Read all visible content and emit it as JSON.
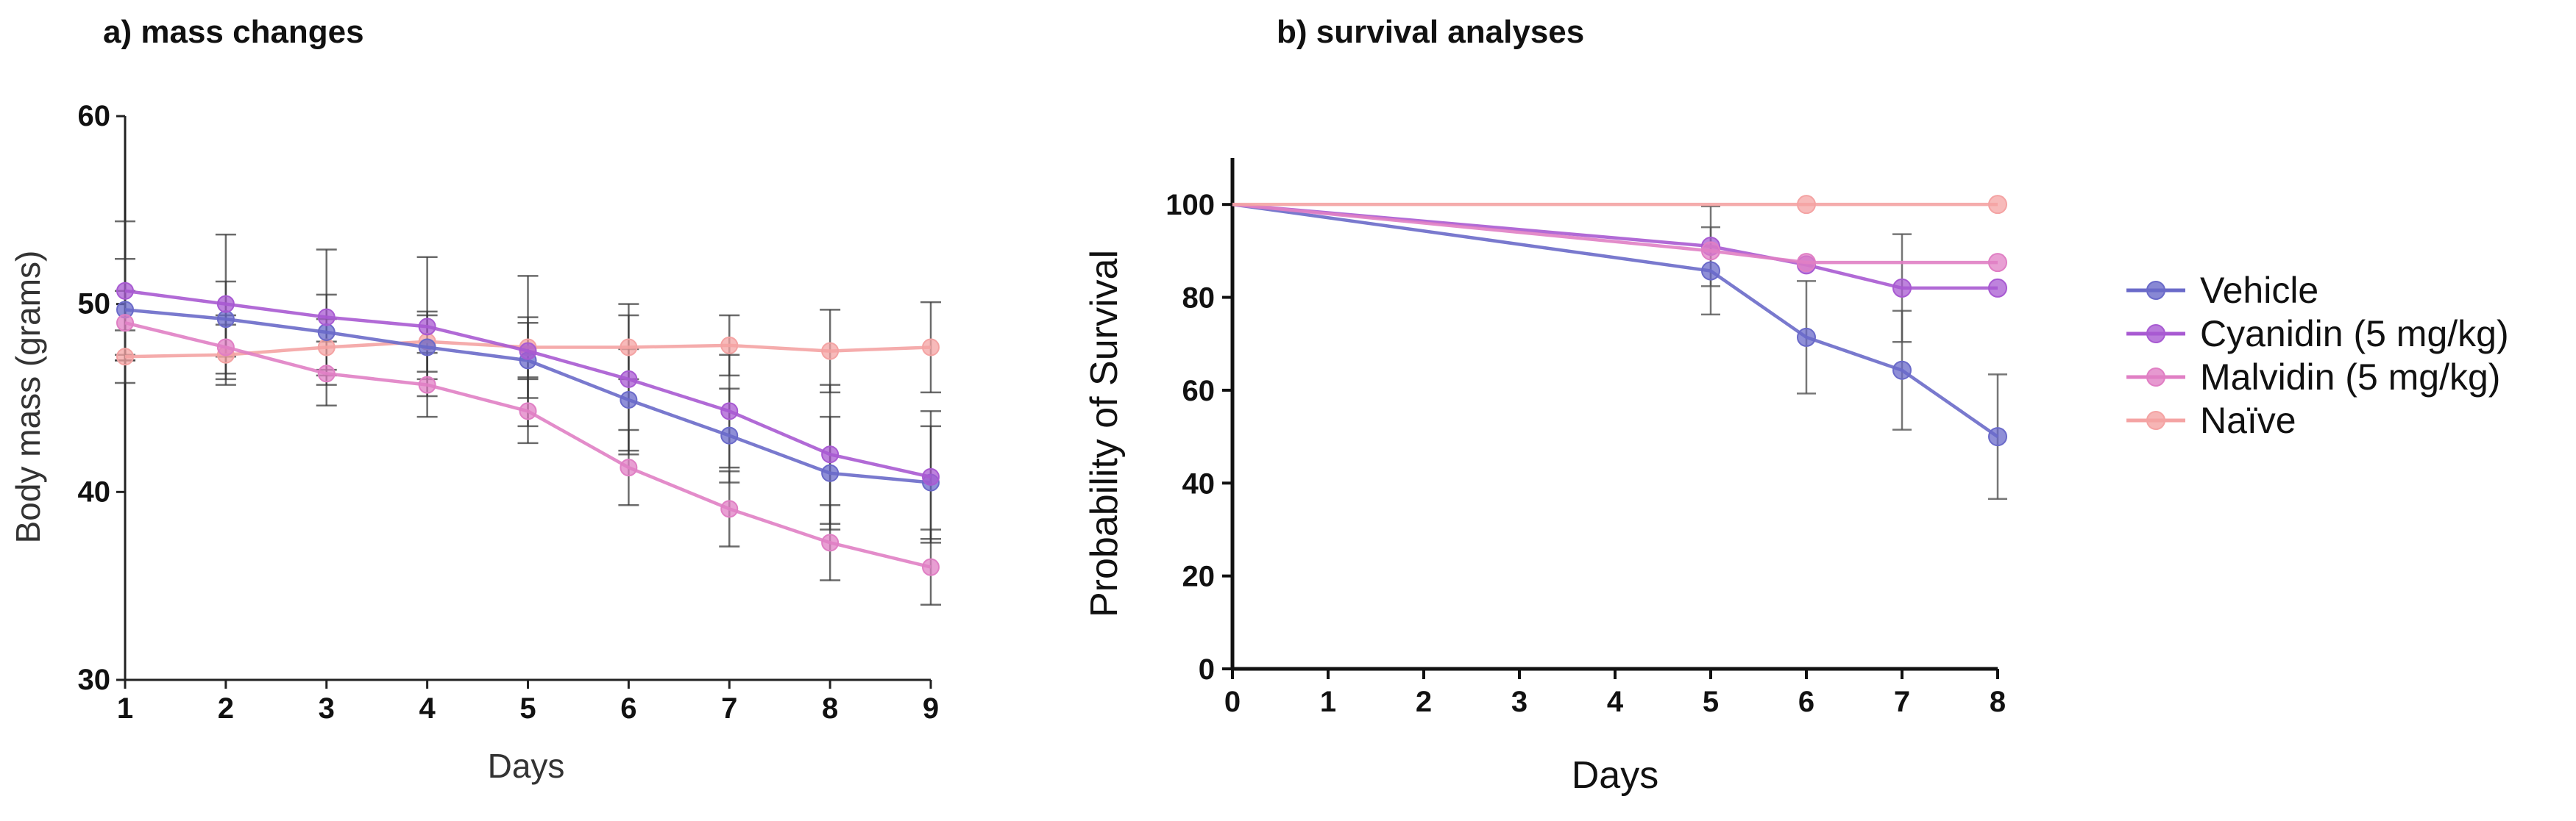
{
  "chart_data": [
    {
      "type": "line",
      "title": "a) mass changes",
      "xlabel": "Days",
      "ylabel": "Body mass (grams)",
      "xlim": [
        1,
        9
      ],
      "ylim": [
        30,
        60
      ],
      "x": [
        1,
        2,
        3,
        4,
        5,
        6,
        7,
        8,
        9
      ],
      "xticks": [
        "1",
        "2",
        "3",
        "4",
        "5",
        "6",
        "7",
        "8",
        "9"
      ],
      "yticks": [
        "30",
        "40",
        "50",
        "60"
      ],
      "series": [
        {
          "name": "Naïve",
          "color": "#f4a3a3",
          "values": [
            47.2,
            47.3,
            47.7,
            48.0,
            47.7,
            47.7,
            47.8,
            47.5,
            47.7
          ],
          "errors": [
            1.4,
            1.6,
            1.5,
            1.6,
            1.6,
            1.7,
            1.6,
            2.2,
            2.4
          ]
        },
        {
          "name": "Vehicle",
          "color": "#6a6ac9",
          "values": [
            49.7,
            49.2,
            48.5,
            47.7,
            47.0,
            44.9,
            43.0,
            41.0,
            40.5
          ],
          "errors": [
            2.7,
            2.0,
            2.0,
            1.7,
            2.0,
            2.7,
            2.5,
            3.0,
            3.0
          ]
        },
        {
          "name": "Cyanidin (5 mg/kg)",
          "color": "#a85ad2",
          "values": [
            50.7,
            50.0,
            49.3,
            48.8,
            47.5,
            46.0,
            44.3,
            42.0,
            40.8
          ],
          "errors": [
            3.7,
            3.7,
            3.6,
            3.7,
            4.0,
            4.0,
            3.0,
            3.7,
            3.5
          ]
        },
        {
          "name": "Malvidin (5 mg/kg)",
          "color": "#e07fc4",
          "values": [
            49.0,
            47.7,
            46.3,
            45.7,
            44.3,
            41.3,
            39.1,
            37.3,
            36.0
          ],
          "errors": [
            1.7,
            1.7,
            1.7,
            1.7,
            1.7,
            2.0,
            2.0,
            2.0,
            2.0
          ]
        }
      ]
    },
    {
      "type": "line",
      "title": "b) survival analyses",
      "xlabel": "Days",
      "ylabel": "Probability of Survival",
      "xlim": [
        0,
        8
      ],
      "ylim": [
        0,
        110
      ],
      "xticks": [
        "0",
        "1",
        "2",
        "3",
        "4",
        "5",
        "6",
        "7",
        "8"
      ],
      "yticks": [
        "0",
        "20",
        "40",
        "60",
        "80",
        "100"
      ],
      "legend_position": "right",
      "series": [
        {
          "name": "Vehicle",
          "color": "#6a6ac9",
          "x": [
            0,
            5,
            6,
            7,
            8
          ],
          "values": [
            100,
            85.7,
            71.4,
            64.3,
            50
          ],
          "errors": [
            0,
            9.4,
            12.1,
            12.8,
            13.4
          ]
        },
        {
          "name": "Cyanidin (5 mg/kg)",
          "color": "#a85ad2",
          "x": [
            0,
            5,
            6,
            7,
            8
          ],
          "values": [
            100,
            91,
            87,
            82,
            82
          ],
          "errors": [
            0,
            8.6,
            0,
            11.6,
            0
          ]
        },
        {
          "name": "Malvidin (5 mg/kg)",
          "color": "#e07fc4",
          "x": [
            0,
            5,
            6,
            8
          ],
          "values": [
            100,
            90,
            87.5,
            87.5
          ],
          "errors": [
            0,
            0,
            0,
            0
          ]
        },
        {
          "name": "Naïve",
          "color": "#f4a3a3",
          "x": [
            0,
            6,
            8
          ],
          "values": [
            100,
            100,
            100
          ],
          "errors": [
            0,
            0,
            0
          ]
        }
      ]
    }
  ],
  "legend": [
    {
      "label": "Vehicle",
      "color": "#6a6ac9"
    },
    {
      "label": "Cyanidin (5 mg/kg)",
      "color": "#a85ad2"
    },
    {
      "label": "Malvidin (5 mg/kg)",
      "color": "#e07fc4"
    },
    {
      "label": "Naïve",
      "color": "#f4a3a3"
    }
  ]
}
